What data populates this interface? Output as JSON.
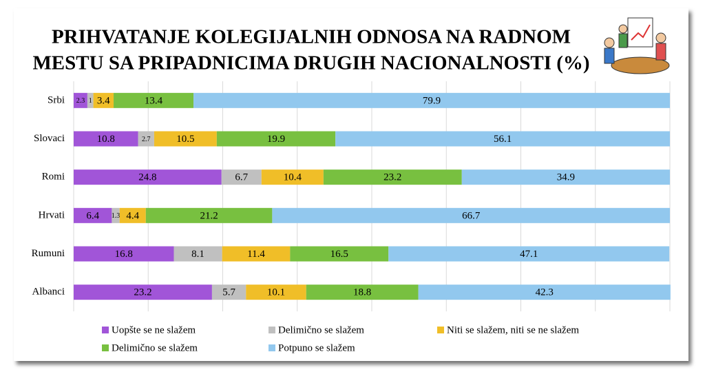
{
  "chart_data": {
    "type": "stacked-bar-horizontal",
    "title": "PRIHVATANJE KOLEGIJALNIH ODNOSA NA RADNOM",
    "subtitle": "MESTU SA PRIPADNICIMA DRUGIH NACIONALNOSTI (%)",
    "categories": [
      "Srbi",
      "Slovaci",
      "Romi",
      "Hrvati",
      "Rumuni",
      "Albanci"
    ],
    "series": [
      {
        "name": "Uopšte se ne slažem",
        "color": "#a155d8",
        "values": [
          2.3,
          10.8,
          24.8,
          6.4,
          16.8,
          23.2
        ]
      },
      {
        "name": "Delimično se slažem",
        "color": "#c0c0c0",
        "values": [
          1,
          2.7,
          6.7,
          1.3,
          8.1,
          5.7
        ]
      },
      {
        "name": "Niti se slažem, niti se ne slažem",
        "color": "#f0be28",
        "values": [
          3.4,
          10.5,
          10.4,
          4.4,
          11.4,
          10.1
        ]
      },
      {
        "name": "Delimično se slažem",
        "color": "#78c040",
        "values": [
          13.4,
          19.9,
          23.2,
          21.2,
          16.5,
          18.8
        ]
      },
      {
        "name": "Potpuno se slažem",
        "color": "#92c8ee",
        "values": [
          79.9,
          56.1,
          34.9,
          66.7,
          47.1,
          42.3
        ]
      }
    ],
    "xlim": [
      0,
      100
    ],
    "grid": true,
    "legend": "bottom"
  }
}
